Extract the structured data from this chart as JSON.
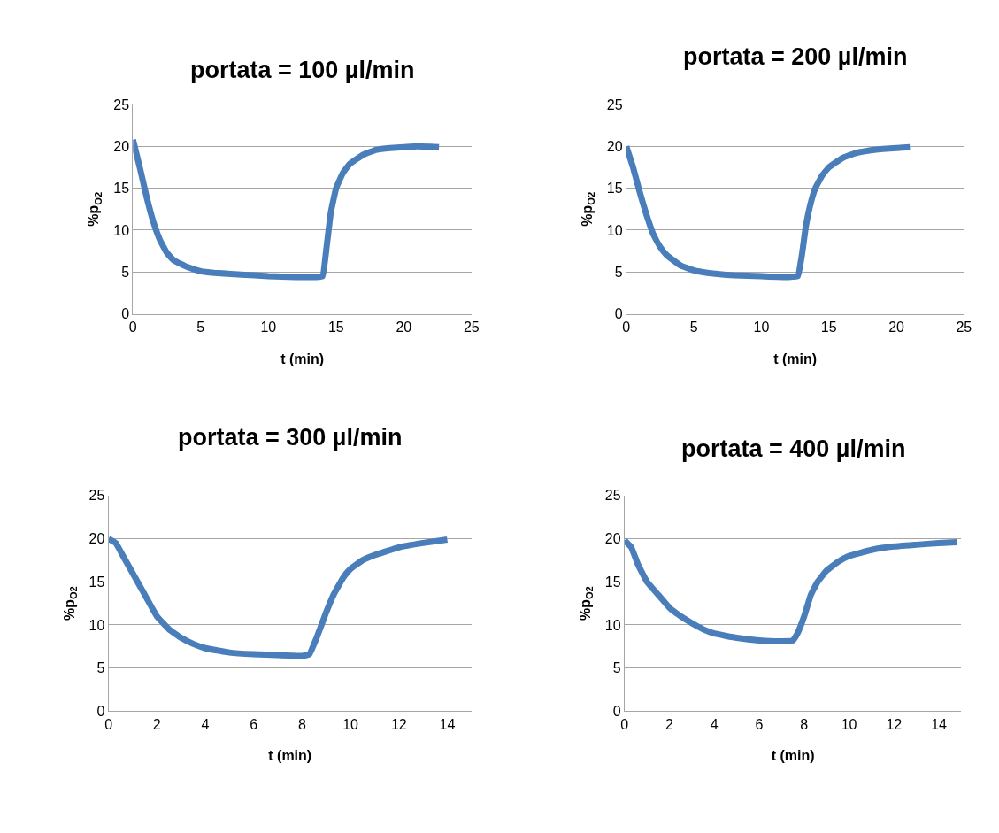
{
  "chart_data": [
    {
      "type": "line",
      "title": "portata = 100 µl/min",
      "xlabel": "t (min)",
      "ylabel": "%p$_{O2}$",
      "xlim": [
        0,
        25
      ],
      "xticks": [
        0,
        5,
        10,
        15,
        20,
        25
      ],
      "ylim": [
        0,
        25
      ],
      "yticks": [
        0,
        5,
        10,
        15,
        20,
        25
      ],
      "grid": "y",
      "marker": "none",
      "line_style": "solid",
      "series": [
        {
          "color": "#4a7ebb",
          "x": [
            0,
            0.5,
            1,
            1.5,
            2,
            2.5,
            3,
            4,
            5,
            6,
            8,
            10,
            12,
            13.5,
            14,
            14.3,
            14.6,
            15,
            15.5,
            16,
            17,
            18,
            19,
            20,
            21,
            22.6
          ],
          "values": [
            20.8,
            17.5,
            14,
            11,
            8.8,
            7.3,
            6.4,
            5.6,
            5.1,
            4.9,
            4.7,
            4.5,
            4.4,
            4.4,
            4.5,
            8,
            12,
            15,
            16.8,
            17.9,
            19,
            19.6,
            19.8,
            19.9,
            20,
            19.9
          ]
        }
      ]
    },
    {
      "type": "line",
      "title": "portata = 200 µl/min",
      "xlabel": "t (min)",
      "ylabel": "%p$_{O2}$",
      "xlim": [
        0,
        25
      ],
      "xticks": [
        0,
        5,
        10,
        15,
        20,
        25
      ],
      "ylim": [
        0,
        25
      ],
      "yticks": [
        0,
        5,
        10,
        15,
        20,
        25
      ],
      "grid": "y",
      "marker": "none",
      "line_style": "solid",
      "series": [
        {
          "color": "#4a7ebb",
          "x": [
            0,
            0.5,
            1,
            1.5,
            2,
            2.5,
            3,
            4,
            5,
            6,
            8,
            10,
            12,
            12.7,
            13,
            13.3,
            13.7,
            14,
            14.5,
            15,
            16,
            17,
            18,
            19,
            20,
            21
          ],
          "values": [
            20,
            17.5,
            14.5,
            11.8,
            9.5,
            8,
            7,
            5.8,
            5.2,
            4.9,
            4.6,
            4.5,
            4.4,
            4.5,
            7,
            10.5,
            13.5,
            15,
            16.5,
            17.5,
            18.6,
            19.2,
            19.5,
            19.7,
            19.8,
            19.9
          ]
        }
      ]
    },
    {
      "type": "line",
      "title": "portata = 300 µl/min",
      "xlabel": "t (min)",
      "ylabel": "%p$_{O2}$",
      "xlim": [
        0,
        15
      ],
      "xticks": [
        0,
        2,
        4,
        6,
        8,
        10,
        12,
        14
      ],
      "ylim": [
        0,
        25
      ],
      "yticks": [
        0,
        5,
        10,
        15,
        20,
        25
      ],
      "grid": "y",
      "marker": "none",
      "line_style": "solid",
      "series": [
        {
          "color": "#4a7ebb",
          "x": [
            0,
            0.3,
            0.6,
            1,
            1.5,
            2,
            2.5,
            3,
            3.5,
            4,
            5,
            6,
            7,
            8,
            8.3,
            8.6,
            9,
            9.3,
            9.7,
            10,
            10.5,
            11,
            12,
            13,
            14
          ],
          "values": [
            20,
            19.5,
            18,
            16,
            13.5,
            11,
            9.5,
            8.5,
            7.8,
            7.3,
            6.8,
            6.6,
            6.5,
            6.4,
            6.6,
            8.5,
            11.5,
            13.5,
            15.5,
            16.5,
            17.5,
            18.1,
            19,
            19.5,
            19.9
          ]
        }
      ]
    },
    {
      "type": "line",
      "title": "portata = 400 µl/min",
      "xlabel": "t (min)",
      "ylabel": "%p$_{O2}$",
      "xlim": [
        0,
        15
      ],
      "xticks": [
        0,
        2,
        4,
        6,
        8,
        10,
        12,
        14
      ],
      "ylim": [
        0,
        25
      ],
      "yticks": [
        0,
        5,
        10,
        15,
        20,
        25
      ],
      "grid": "y",
      "marker": "none",
      "line_style": "solid",
      "series": [
        {
          "color": "#4a7ebb",
          "x": [
            0,
            0.3,
            0.6,
            1,
            1.5,
            2,
            2.5,
            3,
            3.5,
            4,
            5,
            6,
            7,
            7.5,
            7.7,
            8,
            8.3,
            8.6,
            9,
            9.5,
            10,
            11,
            12,
            13,
            14,
            14.8
          ],
          "values": [
            19.8,
            19,
            17,
            15,
            13.5,
            12,
            11,
            10.2,
            9.5,
            9,
            8.5,
            8.2,
            8.1,
            8.2,
            9,
            11,
            13.5,
            15,
            16.3,
            17.3,
            18,
            18.7,
            19.1,
            19.3,
            19.5,
            19.6
          ]
        }
      ]
    }
  ]
}
